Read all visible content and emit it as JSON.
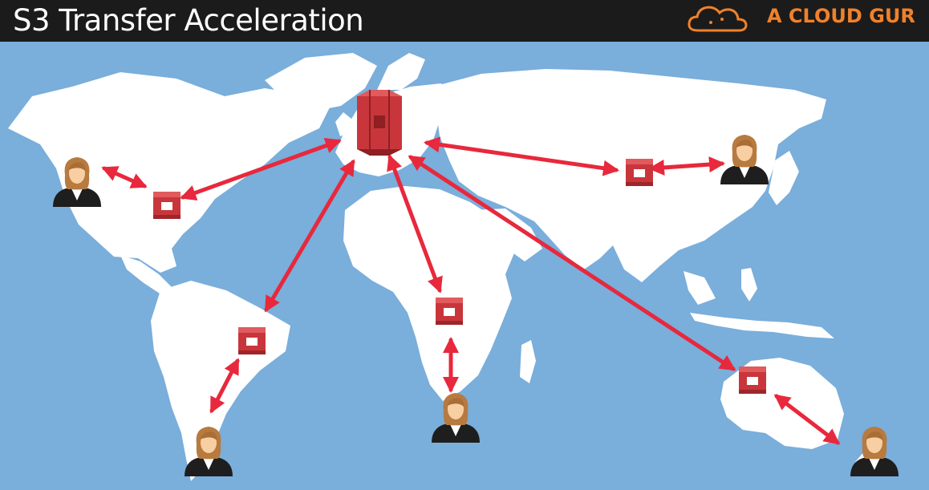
{
  "header": {
    "title": "S3 Transfer Acceleration",
    "brand": "A CLOUD GUR"
  },
  "icons": {
    "bucket": "s3-bucket-icon",
    "edge": "edge-location-icon",
    "user": "user-icon"
  },
  "colors": {
    "ocean": "#7aaedb",
    "land": "#ffffff",
    "arrow": "#e8283c",
    "aws_red": "#c8363b",
    "brand_orange": "#f0812a",
    "header_bg": "#1b1b1b"
  }
}
